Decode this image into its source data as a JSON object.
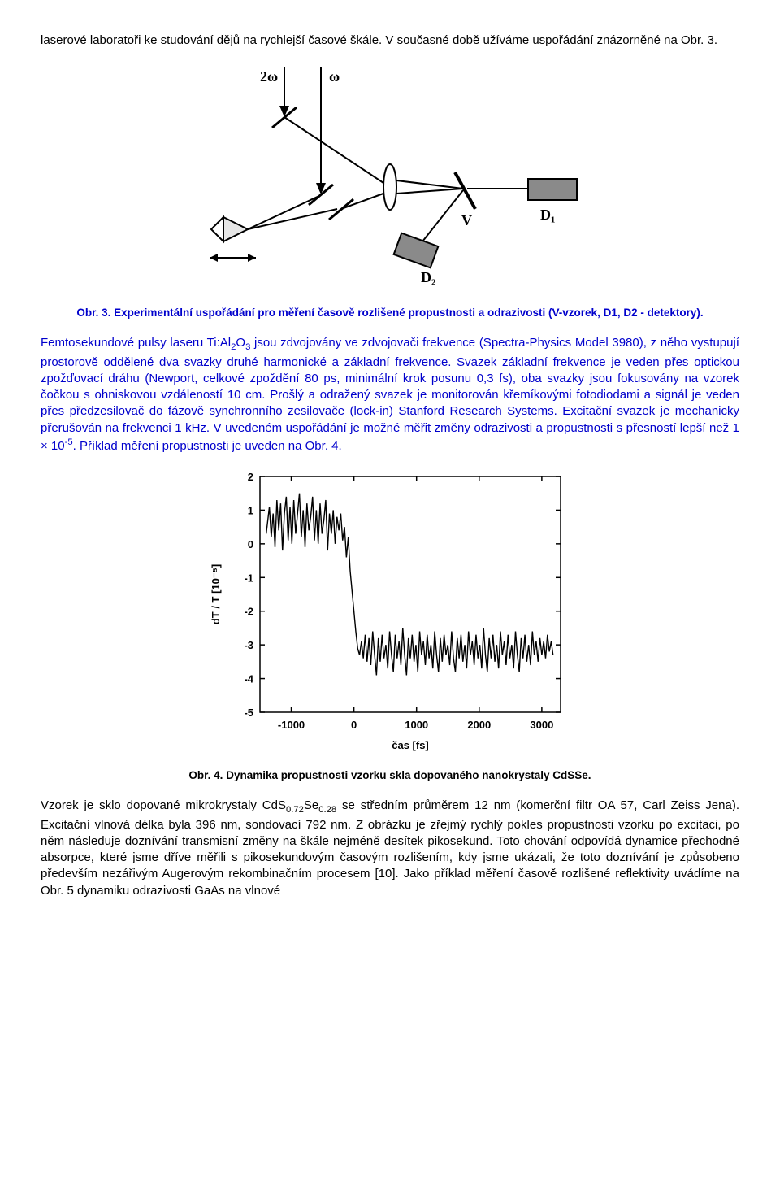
{
  "para1": "laserové laboratoři ke studování dějů na rychlejší časové škále. V současné době užíváme uspořádání znázorněné na Obr. 3.",
  "fig3": {
    "labels": {
      "two_omega": "2ω",
      "omega": "ω",
      "V": "V",
      "D1": "D₁",
      "D2": "D₂"
    },
    "colors": {
      "stroke": "#000000",
      "fill_det": "#8a8a8a",
      "fill_prism": "#e6e6e6",
      "bg": "#ffffff"
    }
  },
  "caption3": "Obr. 3. Experimentální uspořádání pro měření časově rozlišené propustnosti a odrazivosti (V-vzorek, D1, D2 - detektory).",
  "para2_pre": "Femtosekundové pulsy laseru Ti:Al",
  "para2_sub1": "2",
  "para2_mid1": "O",
  "para2_sub2": "3",
  "para2_body": " jsou zdvojovány ve zdvojovači frekvence (Spectra-Physics Model 3980), z něho vystupují prostorově oddělené dva svazky druhé harmonické a základní frekvence. Svazek základní frekvence je veden přes optickou zpožďovací dráhu (Newport, celkové zpoždění 80 ps, minimální krok posunu 0,3 fs), oba svazky jsou fokusovány na vzorek čočkou s ohniskovou vzdáleností 10 cm. Prošlý a odražený svazek je monitorován křemíkovými fotodiodami a signál je veden přes předzesilovač do fázově synchronního zesilovače (lock-in) Stanford Research Systems. Excitační svazek je mechanicky přerušován na frekvenci 1 kHz. V uvedeném uspořádání je možné měřit změny odrazivosti a propustnosti s přesností lepší než 1 × 10",
  "para2_sup": "-5",
  "para2_tail": ". Příklad měření propustnosti je uveden na Obr. 4.",
  "fig4": {
    "type": "line",
    "xlabel": "čas [fs]",
    "ylabel": "dT / T [10⁻⁵]",
    "xlim": [
      -1500,
      3300
    ],
    "ylim": [
      -5,
      2
    ],
    "xticks": [
      -1000,
      0,
      1000,
      2000,
      3000
    ],
    "yticks": [
      -5,
      -4,
      -3,
      -2,
      -1,
      0,
      1,
      2
    ],
    "line_color": "#000000",
    "line_width": 1.4,
    "bg": "#ffffff",
    "axis_color": "#000000",
    "tick_fontsize": 13,
    "label_fontsize": 13,
    "data": [
      [
        -1400,
        0.3
      ],
      [
        -1350,
        1.1
      ],
      [
        -1320,
        0.2
      ],
      [
        -1290,
        0.9
      ],
      [
        -1260,
        -0.1
      ],
      [
        -1230,
        1.3
      ],
      [
        -1200,
        0.4
      ],
      [
        -1170,
        1.2
      ],
      [
        -1140,
        -0.2
      ],
      [
        -1110,
        0.9
      ],
      [
        -1080,
        1.4
      ],
      [
        -1050,
        0.1
      ],
      [
        -1020,
        1.1
      ],
      [
        -990,
        0.0
      ],
      [
        -960,
        1.3
      ],
      [
        -930,
        0.3
      ],
      [
        -900,
        0.9
      ],
      [
        -870,
        1.5
      ],
      [
        -840,
        0.2
      ],
      [
        -810,
        1.0
      ],
      [
        -780,
        -0.1
      ],
      [
        -750,
        1.2
      ],
      [
        -720,
        0.4
      ],
      [
        -690,
        0.8
      ],
      [
        -660,
        1.4
      ],
      [
        -630,
        0.1
      ],
      [
        -600,
        1.0
      ],
      [
        -570,
        0.0
      ],
      [
        -540,
        1.2
      ],
      [
        -510,
        0.3
      ],
      [
        -480,
        0.7
      ],
      [
        -450,
        1.3
      ],
      [
        -420,
        -0.2
      ],
      [
        -390,
        0.9
      ],
      [
        -360,
        0.3
      ],
      [
        -330,
        1.0
      ],
      [
        -300,
        0.0
      ],
      [
        -270,
        0.8
      ],
      [
        -240,
        0.4
      ],
      [
        -210,
        0.9
      ],
      [
        -180,
        0.1
      ],
      [
        -150,
        0.5
      ],
      [
        -120,
        -0.4
      ],
      [
        -90,
        0.2
      ],
      [
        -60,
        -0.8
      ],
      [
        -30,
        -1.4
      ],
      [
        0,
        -2.0
      ],
      [
        30,
        -2.6
      ],
      [
        60,
        -3.1
      ],
      [
        90,
        -3.3
      ],
      [
        120,
        -2.9
      ],
      [
        150,
        -3.4
      ],
      [
        180,
        -2.7
      ],
      [
        210,
        -3.5
      ],
      [
        240,
        -2.8
      ],
      [
        270,
        -3.6
      ],
      [
        300,
        -2.6
      ],
      [
        330,
        -3.3
      ],
      [
        360,
        -3.9
      ],
      [
        390,
        -2.8
      ],
      [
        420,
        -3.5
      ],
      [
        450,
        -2.7
      ],
      [
        480,
        -3.4
      ],
      [
        510,
        -3.0
      ],
      [
        540,
        -3.7
      ],
      [
        570,
        -2.6
      ],
      [
        600,
        -3.3
      ],
      [
        630,
        -3.8
      ],
      [
        660,
        -2.7
      ],
      [
        690,
        -3.4
      ],
      [
        720,
        -2.9
      ],
      [
        750,
        -3.6
      ],
      [
        780,
        -2.5
      ],
      [
        810,
        -3.3
      ],
      [
        840,
        -3.9
      ],
      [
        870,
        -2.8
      ],
      [
        900,
        -3.4
      ],
      [
        930,
        -2.7
      ],
      [
        960,
        -3.5
      ],
      [
        990,
        -3.0
      ],
      [
        1020,
        -3.8
      ],
      [
        1050,
        -2.6
      ],
      [
        1080,
        -3.3
      ],
      [
        1110,
        -2.9
      ],
      [
        1140,
        -3.6
      ],
      [
        1170,
        -2.7
      ],
      [
        1200,
        -3.4
      ],
      [
        1230,
        -3.0
      ],
      [
        1260,
        -3.7
      ],
      [
        1290,
        -2.6
      ],
      [
        1320,
        -3.3
      ],
      [
        1350,
        -3.8
      ],
      [
        1380,
        -2.8
      ],
      [
        1410,
        -3.5
      ],
      [
        1440,
        -2.7
      ],
      [
        1470,
        -3.3
      ],
      [
        1500,
        -3.0
      ],
      [
        1530,
        -3.6
      ],
      [
        1560,
        -2.6
      ],
      [
        1590,
        -3.4
      ],
      [
        1620,
        -3.8
      ],
      [
        1650,
        -2.8
      ],
      [
        1680,
        -3.4
      ],
      [
        1710,
        -2.7
      ],
      [
        1740,
        -3.5
      ],
      [
        1770,
        -3.0
      ],
      [
        1800,
        -3.7
      ],
      [
        1830,
        -2.6
      ],
      [
        1860,
        -3.3
      ],
      [
        1890,
        -2.9
      ],
      [
        1920,
        -3.6
      ],
      [
        1950,
        -2.7
      ],
      [
        1980,
        -3.4
      ],
      [
        2010,
        -3.0
      ],
      [
        2040,
        -3.7
      ],
      [
        2070,
        -2.5
      ],
      [
        2100,
        -3.3
      ],
      [
        2130,
        -3.8
      ],
      [
        2160,
        -2.8
      ],
      [
        2190,
        -3.4
      ],
      [
        2220,
        -2.7
      ],
      [
        2250,
        -3.5
      ],
      [
        2280,
        -3.0
      ],
      [
        2310,
        -3.7
      ],
      [
        2340,
        -2.6
      ],
      [
        2370,
        -3.3
      ],
      [
        2400,
        -2.9
      ],
      [
        2430,
        -3.6
      ],
      [
        2460,
        -2.7
      ],
      [
        2490,
        -3.4
      ],
      [
        2520,
        -3.0
      ],
      [
        2550,
        -3.7
      ],
      [
        2580,
        -2.6
      ],
      [
        2610,
        -3.3
      ],
      [
        2640,
        -3.8
      ],
      [
        2670,
        -2.8
      ],
      [
        2700,
        -3.4
      ],
      [
        2730,
        -2.7
      ],
      [
        2760,
        -3.5
      ],
      [
        2790,
        -3.0
      ],
      [
        2820,
        -3.6
      ],
      [
        2850,
        -2.6
      ],
      [
        2880,
        -3.3
      ],
      [
        2910,
        -2.9
      ],
      [
        2940,
        -3.5
      ],
      [
        2970,
        -2.8
      ],
      [
        3000,
        -3.3
      ],
      [
        3030,
        -2.9
      ],
      [
        3060,
        -3.4
      ],
      [
        3090,
        -2.7
      ],
      [
        3120,
        -3.2
      ],
      [
        3150,
        -2.9
      ],
      [
        3180,
        -3.3
      ]
    ]
  },
  "caption4": "Obr. 4. Dynamika propustnosti vzorku skla dopovaného nanokrystaly CdSSe.",
  "para3_pre": "Vzorek je sklo dopované mikrokrystaly CdS",
  "para3_sub1": "0.72",
  "para3_mid": "Se",
  "para3_sub2": "0.28",
  "para3_body": " se středním průměrem 12 nm (komerční filtr OA 57, Carl Zeiss Jena). Excitační vlnová délka byla 396 nm, sondovací 792 nm. Z obrázku je zřejmý rychlý pokles propustnosti vzorku po excitaci, po něm následuje doznívání transmisní změny na škále nejméně desítek pikosekund. Toto chování odpovídá dynamice přechodné absorpce, které jsme dříve měřili s pikosekundovým časovým rozlišením, kdy jsme ukázali, že toto doznívání je způsobeno především nezářivým Augerovým rekombinačním procesem [10]. Jako příklad měření časově rozlišené reflektivity uvádíme na Obr. 5 dynamiku odrazivosti GaAs na vlnové"
}
